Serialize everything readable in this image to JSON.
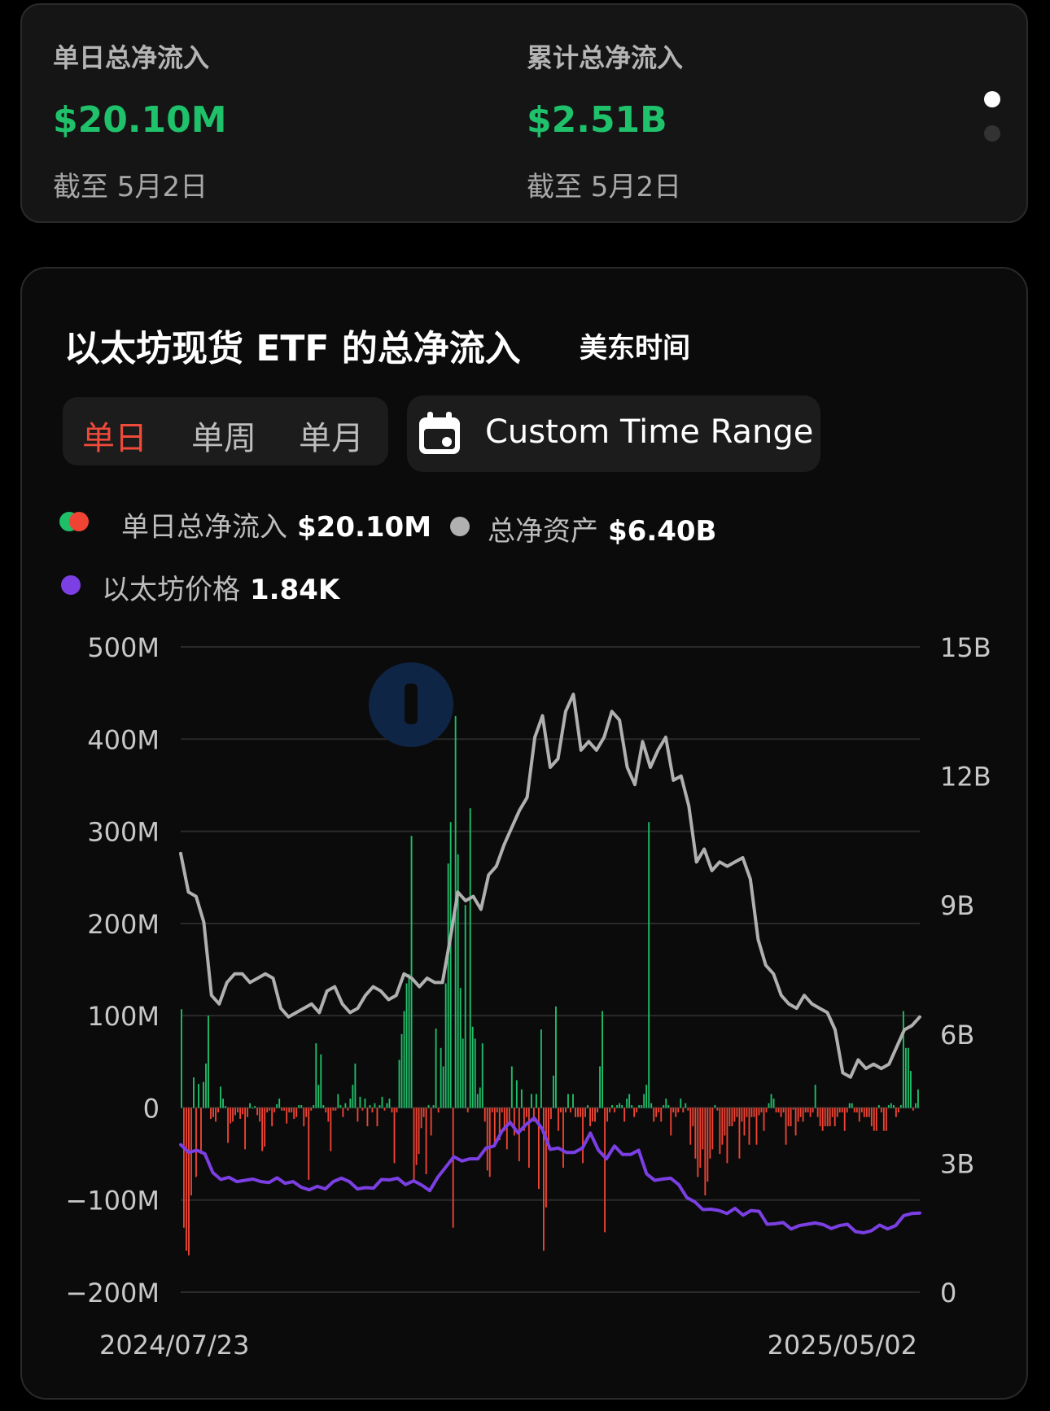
{
  "summary": {
    "daily": {
      "label": "单日总净流入",
      "value": "$20.10M",
      "date": "截至 5月2日"
    },
    "cumulative": {
      "label": "累计总净流入",
      "value": "$2.51B",
      "date": "截至 5月2日"
    },
    "pager": {
      "active_index": 0,
      "count": 2
    }
  },
  "chart_header": {
    "title": "以太坊现货 ETF 的总净流入",
    "timezone": "美东时间",
    "periods": [
      {
        "label": "单日",
        "active": true
      },
      {
        "label": "单周",
        "active": false
      },
      {
        "label": "单月",
        "active": false
      }
    ],
    "custom_range_label": "Custom Time Range",
    "custom_range_icon": "calendar-icon"
  },
  "legend": {
    "flow": {
      "name": "单日总净流入",
      "value": "$20.10M"
    },
    "assets": {
      "name": "总净资产",
      "value": "$6.40B"
    },
    "price": {
      "name": "以太坊价格",
      "value": "1.84K"
    }
  },
  "colors": {
    "inflow": "#1fbf6a",
    "outflow": "#ef4434",
    "net_assets_line": "#b0b0b0",
    "eth_price_line": "#7b3fe4",
    "positive_value": "#1fc16b",
    "active_tab": "#f04a3a"
  },
  "chart_data": {
    "type": "bar",
    "x_start_label": "2024/07/23",
    "x_end_label": "2025/05/02",
    "left_axis": {
      "ticks": [
        "500M",
        "400M",
        "300M",
        "200M",
        "100M",
        "0",
        "−100M",
        "−200M"
      ],
      "ylim": [
        -200,
        500
      ],
      "unit": "M"
    },
    "right_axis": {
      "ticks": [
        "15B",
        "12B",
        "9B",
        "6B",
        "3B",
        "0"
      ],
      "ylim": [
        0,
        15
      ],
      "unit": "B"
    },
    "series": [
      {
        "name": "单日总净流入",
        "kind": "bar",
        "unit": "M USD",
        "values": [
          107,
          -130,
          -155,
          -160,
          -95,
          33,
          -75,
          26,
          -50,
          28,
          48,
          100,
          -12,
          -10,
          -15,
          -5,
          23,
          10,
          2,
          -38,
          -17,
          -15,
          -8,
          -5,
          -12,
          -7,
          -45,
          -10,
          5,
          0,
          2,
          -8,
          -15,
          -47,
          -42,
          -5,
          -3,
          -20,
          -5,
          4,
          10,
          -3,
          -3,
          -17,
          -5,
          -5,
          -12,
          -10,
          3,
          3,
          -20,
          -10,
          -78,
          -3,
          3,
          70,
          25,
          58,
          3,
          -5,
          -15,
          -47,
          -3,
          -3,
          15,
          3,
          -10,
          5,
          -3,
          10,
          25,
          48,
          -15,
          12,
          -3,
          10,
          -20,
          3,
          -5,
          5,
          -20,
          3,
          12,
          -3,
          5,
          10,
          -5,
          -60,
          -5,
          52,
          80,
          105,
          135,
          145,
          295,
          -78,
          -62,
          -50,
          -22,
          -10,
          -72,
          3,
          -30,
          3,
          86,
          -5,
          65,
          45,
          135,
          265,
          310,
          -130,
          425,
          275,
          130,
          75,
          220,
          -5,
          325,
          88,
          75,
          15,
          22,
          70,
          -15,
          -68,
          -75,
          -5,
          -42,
          -5,
          -35,
          -5,
          -25,
          -45,
          -15,
          45,
          -30,
          30,
          -58,
          20,
          -25,
          -10,
          -65,
          15,
          -15,
          15,
          -88,
          85,
          -155,
          -108,
          -45,
          -12,
          35,
          110,
          -25,
          -5,
          -65,
          -5,
          15,
          -5,
          15,
          -10,
          -10,
          -10,
          -60,
          -10,
          3,
          -20,
          -15,
          -15,
          -5,
          45,
          105,
          -135,
          -15,
          -5,
          3,
          -5,
          3,
          5,
          3,
          -15,
          10,
          15,
          3,
          -10,
          -5,
          3,
          3,
          15,
          25,
          310,
          5,
          -15,
          -10,
          -5,
          -15,
          3,
          10,
          3,
          -30,
          -5,
          -10,
          -5,
          10,
          -5,
          5,
          -3,
          -40,
          -20,
          -55,
          -75,
          -65,
          -45,
          -95,
          -80,
          -55,
          -45,
          3,
          -3,
          -50,
          -40,
          -30,
          -60,
          -20,
          -20,
          -15,
          -10,
          -55,
          -15,
          -30,
          -10,
          -40,
          -10,
          -10,
          -40,
          -8,
          -5,
          -25,
          -5,
          5,
          15,
          10,
          -5,
          -5,
          -10,
          -5,
          -40,
          -20,
          -20,
          -2,
          -30,
          -15,
          -10,
          -15,
          -5,
          -5,
          -10,
          -5,
          25,
          -10,
          -20,
          -25,
          -20,
          -20,
          -20,
          -10,
          -20,
          -10,
          -5,
          -5,
          -25,
          -5,
          5,
          5,
          -5,
          -5,
          -15,
          -5,
          -10,
          -10,
          -10,
          -20,
          -25,
          -25,
          3,
          -5,
          -25,
          -25,
          3,
          5,
          3,
          -10,
          -5,
          3,
          105,
          65,
          65,
          40,
          -3,
          5,
          20
        ]
      },
      {
        "name": "总净资产",
        "kind": "line",
        "unit": "B USD",
        "values": [
          10.2,
          9.3,
          9.2,
          8.6,
          6.9,
          6.7,
          7.2,
          7.4,
          7.4,
          7.2,
          7.3,
          7.4,
          7.3,
          6.6,
          6.4,
          6.5,
          6.6,
          6.7,
          6.5,
          7.0,
          7.1,
          6.7,
          6.5,
          6.6,
          6.9,
          7.1,
          7.0,
          6.8,
          6.9,
          7.4,
          7.3,
          7.1,
          7.3,
          7.2,
          7.2,
          8.2,
          9.3,
          9.1,
          9.2,
          8.9,
          9.7,
          9.9,
          10.4,
          10.8,
          11.2,
          11.5,
          12.9,
          13.4,
          12.2,
          12.4,
          13.5,
          13.9,
          12.6,
          12.8,
          12.6,
          12.9,
          13.5,
          13.3,
          12.2,
          11.8,
          12.8,
          12.2,
          12.6,
          12.9,
          11.9,
          12.0,
          11.3,
          10.0,
          10.3,
          9.8,
          10.0,
          9.9,
          10.0,
          10.1,
          9.6,
          8.2,
          7.6,
          7.4,
          6.9,
          6.7,
          6.6,
          6.9,
          6.7,
          6.6,
          6.5,
          6.1,
          5.1,
          5.0,
          5.4,
          5.2,
          5.3,
          5.2,
          5.3,
          5.7,
          6.1,
          6.2,
          6.4
        ]
      },
      {
        "name": "以太坊价格",
        "kind": "line",
        "unit": "K USD",
        "values": [
          3.43,
          3.25,
          3.3,
          3.22,
          2.78,
          2.62,
          2.67,
          2.57,
          2.6,
          2.63,
          2.57,
          2.55,
          2.66,
          2.53,
          2.57,
          2.44,
          2.38,
          2.46,
          2.4,
          2.57,
          2.65,
          2.57,
          2.4,
          2.43,
          2.42,
          2.62,
          2.61,
          2.65,
          2.5,
          2.59,
          2.49,
          2.36,
          2.67,
          2.91,
          3.15,
          3.05,
          3.1,
          3.1,
          3.35,
          3.4,
          3.75,
          3.95,
          3.7,
          3.9,
          4.05,
          3.8,
          3.32,
          3.35,
          3.25,
          3.25,
          3.35,
          3.7,
          3.3,
          3.1,
          3.4,
          3.2,
          3.2,
          3.3,
          2.75,
          2.6,
          2.63,
          2.65,
          2.5,
          2.2,
          2.1,
          1.92,
          1.93,
          1.9,
          1.83,
          1.95,
          1.79,
          1.9,
          1.88,
          1.58,
          1.59,
          1.62,
          1.47,
          1.55,
          1.58,
          1.61,
          1.57,
          1.48,
          1.55,
          1.58,
          1.41,
          1.38,
          1.43,
          1.56,
          1.47,
          1.55,
          1.78,
          1.83,
          1.84
        ]
      }
    ],
    "grid": true
  }
}
